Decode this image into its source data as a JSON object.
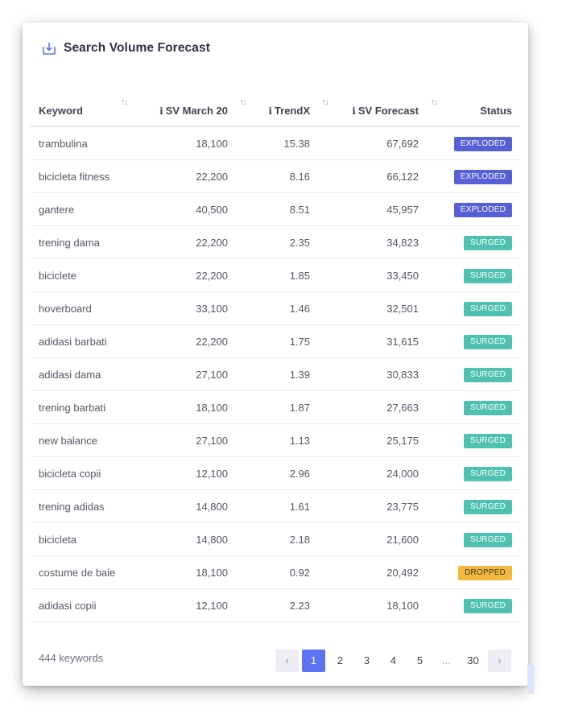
{
  "widget": {
    "title": "Search Volume Forecast",
    "icon": "download-icon",
    "accent_color": "#5c73f2"
  },
  "table": {
    "columns": [
      {
        "label": "Keyword",
        "info": false,
        "sortable": true
      },
      {
        "label": "SV March 20",
        "info": true,
        "sortable": true
      },
      {
        "label": "TrendX",
        "info": true,
        "sortable": true
      },
      {
        "label": "SV Forecast",
        "info": true,
        "sortable": true
      },
      {
        "label": "Status",
        "info": false,
        "sortable": false
      }
    ],
    "rows": [
      {
        "keyword": "trambulina",
        "sv": "18,100",
        "trend": "15.38",
        "forecast": "67,692",
        "status": "EXPLODED",
        "kind": "exploded"
      },
      {
        "keyword": "bicicleta fitness",
        "sv": "22,200",
        "trend": "8.16",
        "forecast": "66,122",
        "status": "EXPLODED",
        "kind": "exploded"
      },
      {
        "keyword": "gantere",
        "sv": "40,500",
        "trend": "8.51",
        "forecast": "45,957",
        "status": "EXPLODED",
        "kind": "exploded"
      },
      {
        "keyword": "trening dama",
        "sv": "22,200",
        "trend": "2.35",
        "forecast": "34,823",
        "status": "SURGED",
        "kind": "surged"
      },
      {
        "keyword": "biciclete",
        "sv": "22,200",
        "trend": "1.85",
        "forecast": "33,450",
        "status": "SURGED",
        "kind": "surged"
      },
      {
        "keyword": "hoverboard",
        "sv": "33,100",
        "trend": "1.46",
        "forecast": "32,501",
        "status": "SURGED",
        "kind": "surged"
      },
      {
        "keyword": "adidasi barbati",
        "sv": "22,200",
        "trend": "1.75",
        "forecast": "31,615",
        "status": "SURGED",
        "kind": "surged"
      },
      {
        "keyword": "adidasi dama",
        "sv": "27,100",
        "trend": "1.39",
        "forecast": "30,833",
        "status": "SURGED",
        "kind": "surged"
      },
      {
        "keyword": "trening barbati",
        "sv": "18,100",
        "trend": "1.87",
        "forecast": "27,663",
        "status": "SURGED",
        "kind": "surged"
      },
      {
        "keyword": "new balance",
        "sv": "27,100",
        "trend": "1.13",
        "forecast": "25,175",
        "status": "SURGED",
        "kind": "surged"
      },
      {
        "keyword": "bicicleta copii",
        "sv": "12,100",
        "trend": "2.96",
        "forecast": "24,000",
        "status": "SURGED",
        "kind": "surged"
      },
      {
        "keyword": "trening adidas",
        "sv": "14,800",
        "trend": "1.61",
        "forecast": "23,775",
        "status": "SURGED",
        "kind": "surged"
      },
      {
        "keyword": "bicicleta",
        "sv": "14,800",
        "trend": "2.18",
        "forecast": "21,600",
        "status": "SURGED",
        "kind": "surged"
      },
      {
        "keyword": "costume de baie",
        "sv": "18,100",
        "trend": "0.92",
        "forecast": "20,492",
        "status": "DROPPED",
        "kind": "dropped"
      },
      {
        "keyword": "adidasi copii",
        "sv": "12,100",
        "trend": "2.23",
        "forecast": "18,100",
        "status": "SURGED",
        "kind": "surged"
      }
    ]
  },
  "footer": {
    "count_label": "444 keywords",
    "pages": [
      "1",
      "2",
      "3",
      "4",
      "5",
      "...",
      "30"
    ],
    "current_page": "1",
    "prev_icon": "chevron-left-icon",
    "next_icon": "chevron-right-icon"
  },
  "status_colors": {
    "exploded": "#5661d8",
    "surged": "#4fc1b0",
    "dropped": "#f4b93c"
  }
}
